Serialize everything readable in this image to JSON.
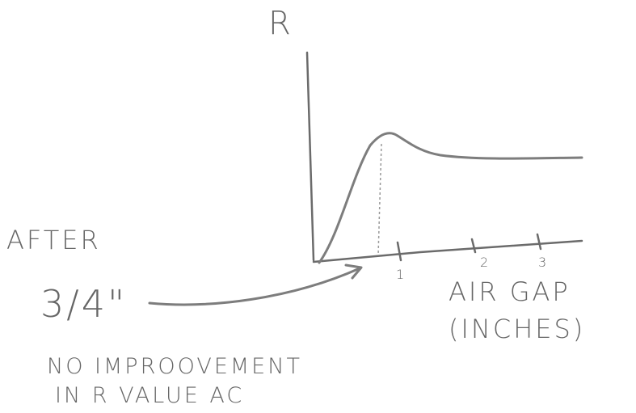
{
  "axis_labels": {
    "y": "R",
    "x": [
      "AIR GAP",
      "(INCHES)"
    ]
  },
  "x_ticks": [
    "1",
    "2",
    "3"
  ],
  "annotation_after": [
    "AFTER",
    "3/4\""
  ],
  "annotation_note": [
    "NO IMPROOVEMENT",
    "IN R VALUE AC"
  ]
}
